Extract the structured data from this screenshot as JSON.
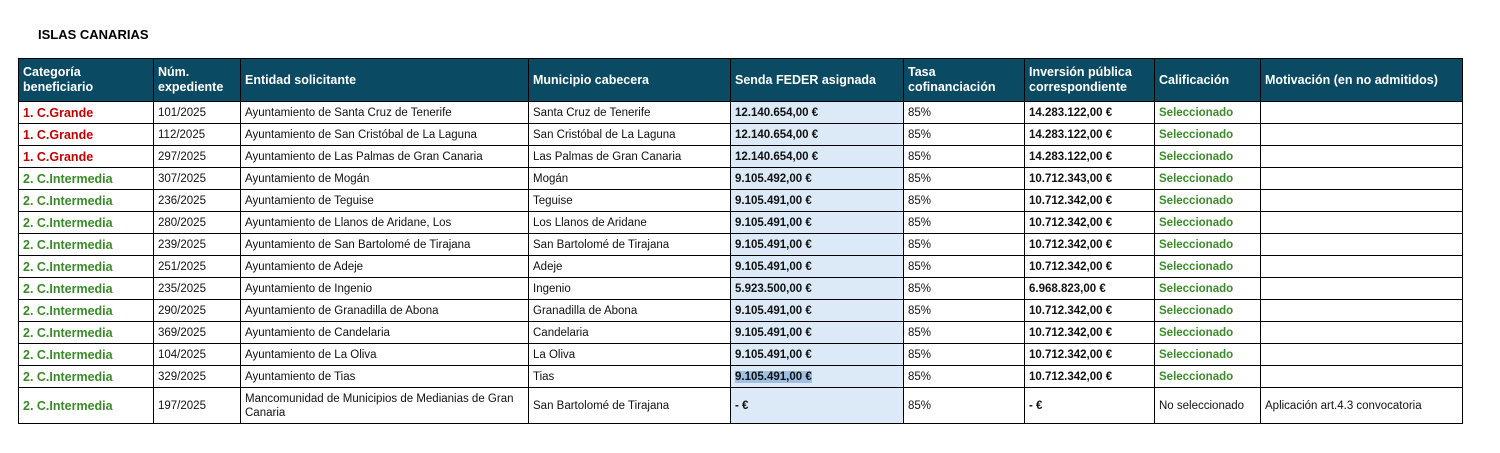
{
  "title": "ISLAS CANARIAS",
  "colors": {
    "header_bg": "#0b4a63",
    "grande": "#c00000",
    "intermedia": "#3b8a2a",
    "feder_bg": "#dce9f6"
  },
  "headers": [
    "Categoría beneficiario",
    "Núm. expediente",
    "Entidad solicitante",
    "Municipio cabecera",
    "Senda FEDER asignada",
    "Tasa cofinanciación",
    "Inversión pública correspondiente",
    "Calificación",
    "Motivación (en no admitidos)"
  ],
  "rows": [
    {
      "cat": "1. C.Grande",
      "exp": "101/2025",
      "entidad": "Ayuntamiento de Santa Cruz de Tenerife",
      "municipio": "Santa Cruz de Tenerife",
      "feder": "12.140.654,00 €",
      "tasa": "85%",
      "inversion": "14.283.122,00 €",
      "calif": "Seleccionado",
      "motivo": ""
    },
    {
      "cat": "1. C.Grande",
      "exp": "112/2025",
      "entidad": "Ayuntamiento de San Cristóbal de La Laguna",
      "municipio": "San Cristóbal de La Laguna",
      "feder": "12.140.654,00 €",
      "tasa": "85%",
      "inversion": "14.283.122,00 €",
      "calif": "Seleccionado",
      "motivo": ""
    },
    {
      "cat": "1. C.Grande",
      "exp": "297/2025",
      "entidad": "Ayuntamiento de Las Palmas de Gran Canaria",
      "municipio": "Las Palmas de Gran Canaria",
      "feder": "12.140.654,00 €",
      "tasa": "85%",
      "inversion": "14.283.122,00 €",
      "calif": "Seleccionado",
      "motivo": ""
    },
    {
      "cat": "2. C.Intermedia",
      "exp": "307/2025",
      "entidad": "Ayuntamiento de Mogán",
      "municipio": "Mogán",
      "feder": "9.105.492,00 €",
      "tasa": "85%",
      "inversion": "10.712.343,00 €",
      "calif": "Seleccionado",
      "motivo": ""
    },
    {
      "cat": "2. C.Intermedia",
      "exp": "236/2025",
      "entidad": "Ayuntamiento de Teguise",
      "municipio": "Teguise",
      "feder": "9.105.491,00 €",
      "tasa": "85%",
      "inversion": "10.712.342,00 €",
      "calif": "Seleccionado",
      "motivo": ""
    },
    {
      "cat": "2. C.Intermedia",
      "exp": "280/2025",
      "entidad": "Ayuntamiento de Llanos de Aridane, Los",
      "municipio": "Los Llanos de Aridane",
      "feder": "9.105.491,00 €",
      "tasa": "85%",
      "inversion": "10.712.342,00 €",
      "calif": "Seleccionado",
      "motivo": ""
    },
    {
      "cat": "2. C.Intermedia",
      "exp": "239/2025",
      "entidad": "Ayuntamiento de San Bartolomé de Tirajana",
      "municipio": "San Bartolomé de Tirajana",
      "feder": "9.105.491,00 €",
      "tasa": "85%",
      "inversion": "10.712.342,00 €",
      "calif": "Seleccionado",
      "motivo": ""
    },
    {
      "cat": "2. C.Intermedia",
      "exp": "251/2025",
      "entidad": "Ayuntamiento de Adeje",
      "municipio": "Adeje",
      "feder": "9.105.491,00 €",
      "tasa": "85%",
      "inversion": "10.712.342,00 €",
      "calif": "Seleccionado",
      "motivo": ""
    },
    {
      "cat": "2. C.Intermedia",
      "exp": "235/2025",
      "entidad": "Ayuntamiento de Ingenio",
      "municipio": "Ingenio",
      "feder": "5.923.500,00 €",
      "tasa": "85%",
      "inversion": "6.968.823,00 €",
      "calif": "Seleccionado",
      "motivo": ""
    },
    {
      "cat": "2. C.Intermedia",
      "exp": "290/2025",
      "entidad": "Ayuntamiento de Granadilla de Abona",
      "municipio": "Granadilla de Abona",
      "feder": "9.105.491,00 €",
      "tasa": "85%",
      "inversion": "10.712.342,00 €",
      "calif": "Seleccionado",
      "motivo": ""
    },
    {
      "cat": "2. C.Intermedia",
      "exp": "369/2025",
      "entidad": "Ayuntamiento de Candelaria",
      "municipio": "Candelaria",
      "feder": "9.105.491,00 €",
      "tasa": "85%",
      "inversion": "10.712.342,00 €",
      "calif": "Seleccionado",
      "motivo": ""
    },
    {
      "cat": "2. C.Intermedia",
      "exp": "104/2025",
      "entidad": "Ayuntamiento de La Oliva",
      "municipio": "La Oliva",
      "feder": "9.105.491,00 €",
      "tasa": "85%",
      "inversion": "10.712.342,00 €",
      "calif": "Seleccionado",
      "motivo": ""
    },
    {
      "cat": "2. C.Intermedia",
      "exp": "329/2025",
      "entidad": "Ayuntamiento de Tias",
      "municipio": "Tias",
      "feder": "9.105.491,00 €",
      "tasa": "85%",
      "inversion": "10.712.342,00 €",
      "calif": "Seleccionado",
      "motivo": "",
      "feder_selected": true
    },
    {
      "cat": "2. C.Intermedia",
      "exp": "197/2025",
      "entidad": "Mancomunidad de Municipios de Medianias de Gran Canaria",
      "municipio": "San Bartolomé de Tirajana",
      "feder": "-  €",
      "tasa": "85%",
      "inversion": "-  €",
      "calif": "No seleccionado",
      "motivo": "Aplicación art.4.3 convocatoria"
    }
  ]
}
